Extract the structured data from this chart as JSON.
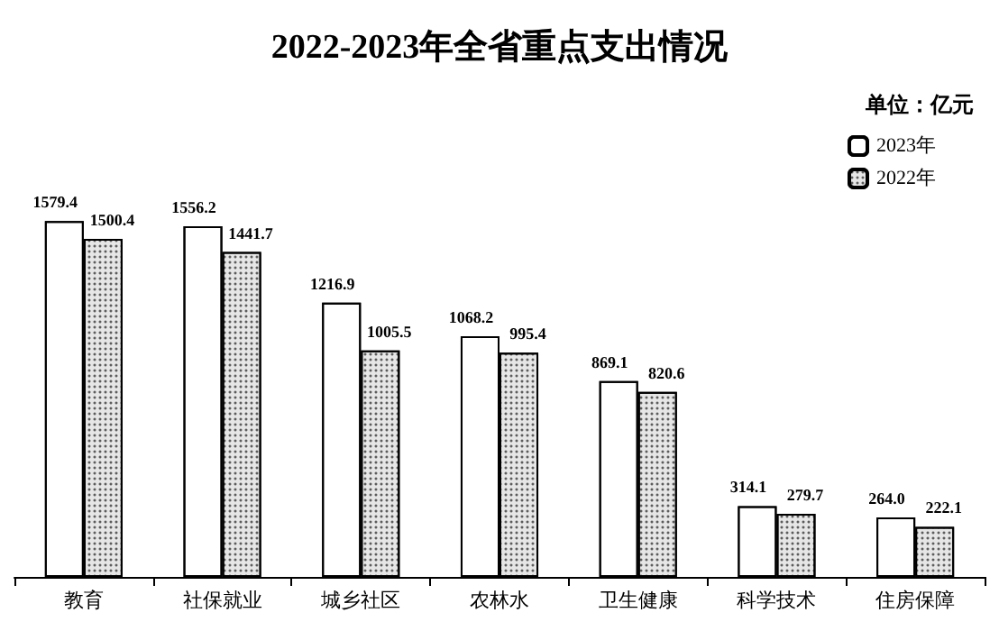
{
  "chart_data": {
    "type": "bar",
    "title": "2022-2023年全省重点支出情况",
    "annotations": [
      "单位：亿元"
    ],
    "categories": [
      "教育",
      "社保就业",
      "城乡社区",
      "农林水",
      "卫生健康",
      "科学技术",
      "住房保障"
    ],
    "series": [
      {
        "name": "2023年",
        "color": "#ffffff",
        "values": [
          1579.4,
          1556.2,
          1216.9,
          1068.2,
          869.1,
          314.1,
          264.0
        ],
        "value_labels": [
          "1579.4",
          "1556.2",
          "1216.9",
          "1068.2",
          "869.1",
          "314.1",
          "264.0"
        ]
      },
      {
        "name": "2022年",
        "color": "#e6e6e6",
        "values": [
          1500.4,
          1441.7,
          1005.5,
          995.4,
          820.6,
          279.7,
          222.1
        ],
        "value_labels": [
          "1500.4",
          "1441.7",
          "1005.5",
          "995.4",
          "820.6",
          "279.7",
          "222.1"
        ]
      }
    ],
    "legend": "top right"
  }
}
